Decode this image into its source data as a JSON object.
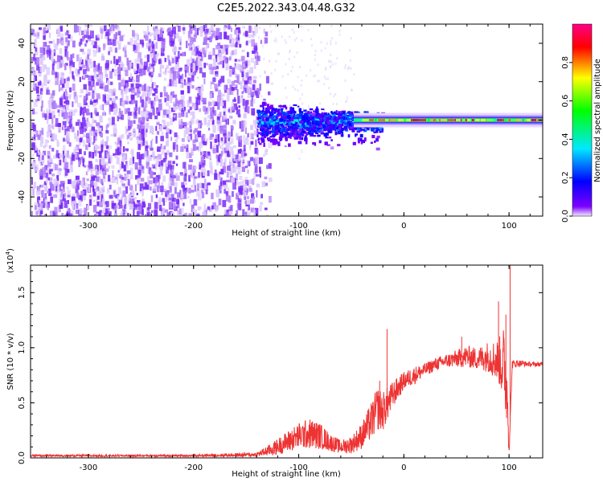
{
  "title": "C2E5.2022.343.04.48.G32",
  "colors": {
    "snr_line": "#ee3333",
    "frame": "#000000"
  },
  "chart_data": [
    {
      "type": "heatmap",
      "title": "C2E5.2022.343.04.48.G32",
      "xlabel": "Height of straight line (km)",
      "ylabel": "Frequency (Hz)",
      "xlim": [
        -355,
        132
      ],
      "ylim": [
        -50,
        50
      ],
      "xticks": [
        -300,
        -200,
        -100,
        0,
        100
      ],
      "xtick_labels": [
        "-300",
        "-200",
        "-100",
        "0",
        "100"
      ],
      "yticks": [
        -40,
        -20,
        0,
        20,
        40
      ],
      "ytick_labels": [
        "-40",
        "-20",
        "0",
        "20",
        "40"
      ],
      "grid": false,
      "colorbar": {
        "label": "Normalized spectral amplitude",
        "range": [
          0.0,
          1.0
        ],
        "ticks": [
          0.0,
          0.2,
          0.4,
          0.6,
          0.8
        ],
        "tick_labels": [
          "0.0",
          "0.2",
          "0.4",
          "0.6",
          "0.8"
        ],
        "colormap": [
          "#f2eaff",
          "#7e00ff",
          "#0000ff",
          "#00e8ff",
          "#00ff00",
          "#ffff00",
          "#ff0000",
          "#ff0088"
        ]
      },
      "regions": [
        {
          "name": "broadband noise",
          "x_range": [
            -355,
            -140
          ],
          "freq_range": [
            -50,
            50
          ],
          "amplitude": 0.05
        },
        {
          "name": "transition",
          "x_range": [
            -140,
            -40
          ],
          "freq_range": [
            -15,
            12
          ],
          "amplitude": 0.3
        },
        {
          "name": "narrow carrier",
          "x_range": [
            -40,
            132
          ],
          "center_freq": 0,
          "halfwidth_hz": 4,
          "amplitude": 0.9
        }
      ]
    },
    {
      "type": "line",
      "xlabel": "Height of straight line (km)",
      "ylabel": "SNR (10 * v/v)",
      "y_multiplier_label": "(x10",
      "y_multiplier_exp": "4",
      "y_multiplier_close": ")",
      "xlim": [
        -355,
        132
      ],
      "ylim": [
        0,
        1.75
      ],
      "xticks": [
        -300,
        -200,
        -100,
        0,
        100
      ],
      "xtick_labels": [
        "-300",
        "-200",
        "-100",
        "0",
        "100"
      ],
      "yticks": [
        0.0,
        0.5,
        1.0,
        1.5
      ],
      "ytick_labels": [
        "0.0",
        "0.5",
        "1.0",
        "1.5"
      ],
      "grid": false,
      "series": [
        {
          "x": [
            -355,
            -300,
            -200,
            -140,
            -125,
            -110,
            -100,
            -90,
            -80,
            -70,
            -60,
            -50,
            -40,
            -30,
            -25,
            -20,
            -15,
            -10,
            0,
            10,
            20,
            30,
            40,
            50,
            60,
            70,
            80,
            90,
            95,
            99,
            100,
            103,
            110,
            120,
            132
          ],
          "y": [
            0.02,
            0.02,
            0.02,
            0.03,
            0.08,
            0.15,
            0.2,
            0.22,
            0.2,
            0.14,
            0.1,
            0.12,
            0.2,
            0.35,
            0.45,
            0.42,
            0.5,
            0.58,
            0.7,
            0.75,
            0.8,
            0.85,
            0.88,
            0.9,
            0.92,
            0.9,
            0.92,
            0.88,
            0.85,
            0.5,
            0.05,
            0.85,
            0.86,
            0.85,
            0.85
          ],
          "noise_amplitude": [
            0.01,
            0.01,
            0.01,
            0.02,
            0.06,
            0.1,
            0.12,
            0.14,
            0.12,
            0.08,
            0.06,
            0.08,
            0.12,
            0.18,
            0.2,
            0.18,
            0.15,
            0.12,
            0.08,
            0.08,
            0.06,
            0.06,
            0.06,
            0.08,
            0.1,
            0.1,
            0.14,
            0.2,
            0.35,
            0.3,
            0.05,
            0.04,
            0.03,
            0.02,
            0.02
          ],
          "spikes": [
            {
              "x": -16,
              "y": 1.17
            },
            {
              "x": -23,
              "y": 0.7
            },
            {
              "x": 55,
              "y": 1.1
            },
            {
              "x": 90,
              "y": 1.42
            },
            {
              "x": 97,
              "y": 1.3
            },
            {
              "x": 101,
              "y": 1.75
            }
          ]
        }
      ]
    }
  ]
}
